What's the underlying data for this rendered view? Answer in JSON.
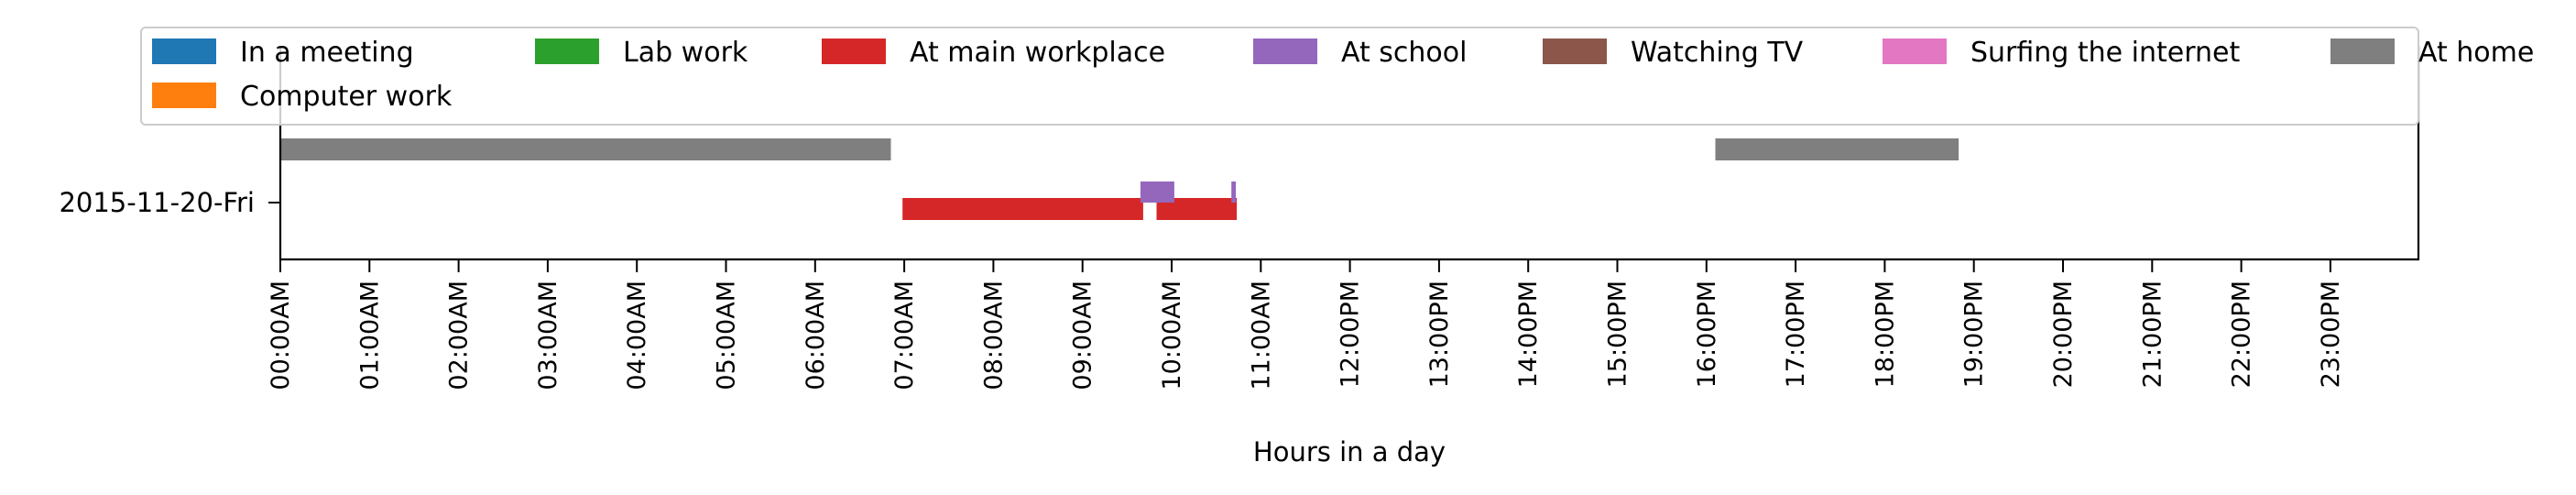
{
  "chart_data": {
    "type": "timeline",
    "xlabel": "Hours in a day",
    "xlim": [
      0,
      24
    ],
    "x_ticks": [
      "00:00AM",
      "01:00AM",
      "02:00AM",
      "03:00AM",
      "04:00AM",
      "05:00AM",
      "06:00AM",
      "07:00AM",
      "08:00AM",
      "09:00AM",
      "10:00AM",
      "11:00AM",
      "12:00PM",
      "13:00PM",
      "14:00PM",
      "15:00PM",
      "16:00PM",
      "17:00PM",
      "18:00PM",
      "19:00PM",
      "20:00PM",
      "21:00PM",
      "22:00PM",
      "23:00PM"
    ],
    "rows": [
      "2015-11-20-Fri"
    ],
    "legend": {
      "placement": "top",
      "entries": [
        {
          "label": "In a meeting",
          "color": "#1f77b4"
        },
        {
          "label": "Computer work",
          "color": "#ff7f0e"
        },
        {
          "label": "Lab work",
          "color": "#2ca02c"
        },
        {
          "label": "At main workplace",
          "color": "#d62728"
        },
        {
          "label": "At school",
          "color": "#9467bd"
        },
        {
          "label": "Watching TV",
          "color": "#8c564b"
        },
        {
          "label": "Surfing the internet",
          "color": "#e377c2"
        },
        {
          "label": "At home",
          "color": "#7f7f7f"
        }
      ]
    },
    "segments": [
      {
        "row": "2015-11-20-Fri",
        "activity": "At home",
        "start": 0.0,
        "end": 6.85,
        "level": "upper"
      },
      {
        "row": "2015-11-20-Fri",
        "activity": "At home",
        "start": 16.1,
        "end": 18.83,
        "level": "upper"
      },
      {
        "row": "2015-11-20-Fri",
        "activity": "At main workplace",
        "start": 6.98,
        "end": 9.68,
        "level": "lower"
      },
      {
        "row": "2015-11-20-Fri",
        "activity": "At main workplace",
        "start": 9.83,
        "end": 10.73,
        "level": "lower"
      },
      {
        "row": "2015-11-20-Fri",
        "activity": "At school",
        "start": 9.65,
        "end": 10.03,
        "level": "middle"
      },
      {
        "row": "2015-11-20-Fri",
        "activity": "At school",
        "start": 10.67,
        "end": 10.72,
        "level": "middle"
      }
    ]
  }
}
